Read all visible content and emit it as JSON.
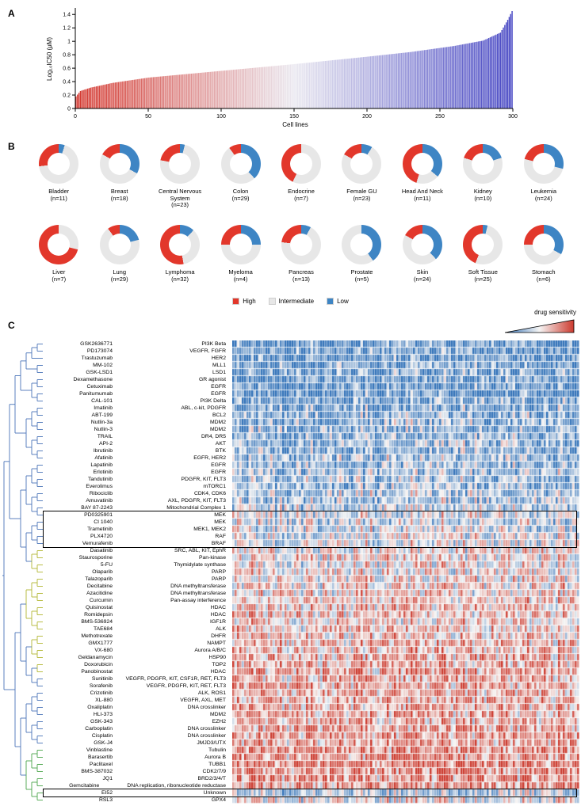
{
  "figure": {
    "panel_a_label": "A",
    "panel_b_label": "B",
    "panel_c_label": "C"
  },
  "chart_data": [
    {
      "type": "bar",
      "title": "",
      "xlabel": "Cell lines",
      "ylabel": "Log₁₀IC50 (μM)",
      "n_bars": 300,
      "xlim": [
        0,
        300
      ],
      "ylim": [
        0,
        1.45
      ],
      "xticks": [
        0,
        50,
        100,
        150,
        200,
        250,
        300
      ],
      "yticks": [
        0,
        0.2,
        0.4,
        0.6,
        0.8,
        1,
        1.2,
        1.4
      ],
      "ytick_labels": [
        "0",
        "0.2",
        "0.4",
        "0.6",
        "0.8",
        "1",
        "1.2",
        "1.4"
      ],
      "profile_x": [
        0,
        3,
        10,
        25,
        50,
        100,
        150,
        200,
        230,
        260,
        280,
        292,
        297,
        300
      ],
      "profile_y": [
        0.18,
        0.26,
        0.31,
        0.38,
        0.46,
        0.56,
        0.66,
        0.77,
        0.84,
        0.93,
        1.01,
        1.13,
        1.32,
        1.45
      ],
      "color_low": "#d3342b",
      "color_mid": "#eae8f0",
      "color_high": "#4343c2"
    },
    {
      "type": "pie",
      "style": "donut",
      "legend": [
        {
          "label": "High",
          "color": "#e2372b"
        },
        {
          "label": "Intermediate",
          "color": "#e7e7e7"
        },
        {
          "label": "Low",
          "color": "#3e85c4"
        }
      ],
      "donuts": [
        {
          "name": "Bladder",
          "n": 11,
          "high": 0.27,
          "low": 0.05
        },
        {
          "name": "Breast",
          "n": 18,
          "high": 0.17,
          "low": 0.33
        },
        {
          "name": "Central Nervous System",
          "n": 23,
          "high": 0.22,
          "low": 0.04
        },
        {
          "name": "Colon",
          "n": 29,
          "high": 0.1,
          "low": 0.38
        },
        {
          "name": "Endocrine",
          "n": 7,
          "high": 0.43,
          "low": 0.0
        },
        {
          "name": "Female GU",
          "n": 23,
          "high": 0.17,
          "low": 0.09
        },
        {
          "name": "Head And Neck",
          "n": 11,
          "high": 0.45,
          "low": 0.36
        },
        {
          "name": "Kidney",
          "n": 10,
          "high": 0.2,
          "low": 0.2
        },
        {
          "name": "Leukemia",
          "n": 24,
          "high": 0.21,
          "low": 0.29
        },
        {
          "name": "Liver",
          "n": 7,
          "high": 0.71,
          "low": 0.0
        },
        {
          "name": "Lung",
          "n": 29,
          "high": 0.1,
          "low": 0.21
        },
        {
          "name": "Lymphoma",
          "n": 32,
          "high": 0.53,
          "low": 0.12
        },
        {
          "name": "Myeloma",
          "n": 4,
          "high": 0.25,
          "low": 0.25
        },
        {
          "name": "Pancreas",
          "n": 13,
          "high": 0.23,
          "low": 0.08
        },
        {
          "name": "Prostate",
          "n": 5,
          "high": 0.0,
          "low": 0.4
        },
        {
          "name": "Skin",
          "n": 24,
          "high": 0.17,
          "low": 0.38
        },
        {
          "name": "Soft Tissue",
          "n": 25,
          "high": 0.44,
          "low": 0.04
        },
        {
          "name": "Stomach",
          "n": 6,
          "high": 0.25,
          "low": 0.33
        }
      ]
    },
    {
      "type": "heatmap",
      "legend_title": "drug sensitivity",
      "colormap": {
        "low": "#3373b9",
        "mid": "#f6f5f4",
        "high": "#cc3a2e"
      },
      "n_columns": 146,
      "rows": [
        {
          "drug": "GSK2636771",
          "target": "PI3K Beta",
          "bias": -0.72
        },
        {
          "drug": "PD173074",
          "target": "VEGFR, FGFR",
          "bias": -0.68
        },
        {
          "drug": "Trastuzumab",
          "target": "HER2",
          "bias": -0.72
        },
        {
          "drug": "MM-102",
          "target": "MLL1",
          "bias": -0.62
        },
        {
          "drug": "GSK-LSD1",
          "target": "LSD1",
          "bias": -0.62
        },
        {
          "drug": "Dexamethasone",
          "target": "GR agonist",
          "bias": -0.66
        },
        {
          "drug": "Cetuximab",
          "target": "EGFR",
          "bias": -0.72
        },
        {
          "drug": "Panitumumab",
          "target": "EGFR",
          "bias": -0.7
        },
        {
          "drug": "CAL-101",
          "target": "PI3K Delta",
          "bias": -0.58
        },
        {
          "drug": "Imatinib",
          "target": "ABL, c-kit, PDGFR",
          "bias": -0.55
        },
        {
          "drug": "ABT-199",
          "target": "BCL2",
          "bias": -0.5
        },
        {
          "drug": "Nutlin-3a",
          "target": "MDM2",
          "bias": -0.45
        },
        {
          "drug": "Nutlin-3",
          "target": "MDM2",
          "bias": -0.45
        },
        {
          "drug": "TRAIL",
          "target": "DR4, DR5",
          "bias": -0.5
        },
        {
          "drug": "API-2",
          "target": "AKT",
          "bias": -0.42
        },
        {
          "drug": "Ibrutinib",
          "target": "BTK",
          "bias": -0.45
        },
        {
          "drug": "Afatinib",
          "target": "EGFR, HER2",
          "bias": -0.35
        },
        {
          "drug": "Lapatinib",
          "target": "EGFR",
          "bias": -0.4
        },
        {
          "drug": "Erlotinib",
          "target": "EGFR",
          "bias": -0.38
        },
        {
          "drug": "Tandutinib",
          "target": "PDGFR, KIT, FLT3",
          "bias": -0.32
        },
        {
          "drug": "Everolimus",
          "target": "mTORC1",
          "bias": -0.4
        },
        {
          "drug": "Ribociclib",
          "target": "CDK4, CDK6",
          "bias": -0.3
        },
        {
          "drug": "Amuvatinib",
          "target": "AXL, PDGFR, KIT, FLT3",
          "bias": -0.3
        },
        {
          "drug": "BAY 87-2243",
          "target": "Mitochondrial Complex 1",
          "bias": -0.25
        },
        {
          "drug": "PD0325901",
          "target": "MEK",
          "bias": -0.1
        },
        {
          "drug": "CI 1040",
          "target": "MEK",
          "bias": -0.12
        },
        {
          "drug": "Trametinib",
          "target": "MEK1, MEK2",
          "bias": -0.15
        },
        {
          "drug": "PLX4720",
          "target": "RAF",
          "bias": -0.05
        },
        {
          "drug": "Vemurafenib",
          "target": "BRAF",
          "bias": -0.05
        },
        {
          "drug": "Dasatinib",
          "target": "SRC, ABL, KIT, EphR",
          "bias": 0.08
        },
        {
          "drug": "Staurosporine",
          "target": "Pan-kinase",
          "bias": 0.15
        },
        {
          "drug": "5-FU",
          "target": "Thymidylate synthase",
          "bias": 0.05
        },
        {
          "drug": "Olaparib",
          "target": "PARP",
          "bias": 0.1
        },
        {
          "drug": "Talazoparib",
          "target": "PARP",
          "bias": 0.1
        },
        {
          "drug": "Decitabine",
          "target": "DNA methyltransferase",
          "bias": 0.15
        },
        {
          "drug": "Azacitidine",
          "target": "DNA methyltransferase",
          "bias": 0.15
        },
        {
          "drug": "Curcumin",
          "target": "Pan-assay interference",
          "bias": 0.2
        },
        {
          "drug": "Quisinostat",
          "target": "HDAC",
          "bias": 0.25
        },
        {
          "drug": "Romidepsin",
          "target": "HDAC",
          "bias": 0.25
        },
        {
          "drug": "BMS-536924",
          "target": "IGF1R",
          "bias": 0.2
        },
        {
          "drug": "TAE684",
          "target": "ALK",
          "bias": 0.25
        },
        {
          "drug": "Methotrexate",
          "target": "DHFR",
          "bias": 0.2
        },
        {
          "drug": "GMX1777",
          "target": "NAMPT",
          "bias": 0.3
        },
        {
          "drug": "VX-680",
          "target": "Aurora A/B/C",
          "bias": 0.3
        },
        {
          "drug": "Geldanamycin",
          "target": "HSP90",
          "bias": 0.35
        },
        {
          "drug": "Doxorubicin",
          "target": "TOP2",
          "bias": 0.35
        },
        {
          "drug": "Panobinostat",
          "target": "HDAC",
          "bias": 0.4
        },
        {
          "drug": "Sunitinib",
          "target": "VEGFR, PDGFR, KIT, CSF1R, RET, FLT3",
          "bias": 0.35
        },
        {
          "drug": "Sorafenib",
          "target": "VEGFR, PDGFR, KIT, RET, FLT3",
          "bias": 0.38
        },
        {
          "drug": "Crizotinib",
          "target": "ALK, ROS1",
          "bias": 0.35
        },
        {
          "drug": "XL-880",
          "target": "VEGFR, AXL, MET",
          "bias": 0.4
        },
        {
          "drug": "Oxaliplatin",
          "target": "DNA crosslinker",
          "bias": 0.35
        },
        {
          "drug": "HLI-373",
          "target": "MDM2",
          "bias": 0.4
        },
        {
          "drug": "GSK-343",
          "target": "EZH2",
          "bias": 0.35
        },
        {
          "drug": "Carboplatin",
          "target": "DNA crosslinker",
          "bias": 0.4
        },
        {
          "drug": "Cisplatin",
          "target": "DNA crosslinker",
          "bias": 0.45
        },
        {
          "drug": "GSK-J4",
          "target": "JMJD3/UTX",
          "bias": 0.4
        },
        {
          "drug": "Vinblastine",
          "target": "Tubulin",
          "bias": 0.55
        },
        {
          "drug": "Barasertib",
          "target": "Aurora B",
          "bias": 0.5
        },
        {
          "drug": "Paclitaxel",
          "target": "TUBB1",
          "bias": 0.6
        },
        {
          "drug": "BMS-387032",
          "target": "CDK2/7/9",
          "bias": 0.55
        },
        {
          "drug": "JQ1",
          "target": "BRD2/3/4/T",
          "bias": 0.5
        },
        {
          "drug": "Gemcitabine",
          "target": "DNA replication, ribonucleotide reductase",
          "bias": 0.45
        },
        {
          "drug": "EI52",
          "target": "Unknown",
          "bias": -0.3
        },
        {
          "drug": "RSL3",
          "target": "GPX4",
          "bias": 0.05
        }
      ],
      "boxes": [
        {
          "from": "PD0325901",
          "to": "Vemurafenib"
        },
        {
          "from": "EI52",
          "to": "EI52"
        }
      ]
    }
  ]
}
